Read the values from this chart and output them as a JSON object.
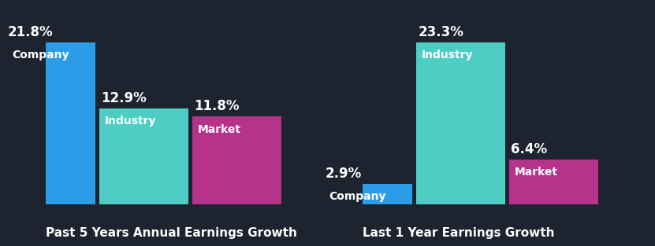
{
  "background_color": "#1e2330",
  "group1": {
    "title": "Past 5 Years Annual Earnings Growth",
    "bars": [
      {
        "label": "Company",
        "value": 21.8,
        "color": "#2b9de8"
      },
      {
        "label": "Industry",
        "value": 12.9,
        "color": "#4ecdc4"
      },
      {
        "label": "Market",
        "value": 11.8,
        "color": "#b5338a"
      }
    ]
  },
  "group2": {
    "title": "Last 1 Year Earnings Growth",
    "bars": [
      {
        "label": "Company",
        "value": 2.9,
        "color": "#2b9de8"
      },
      {
        "label": "Industry",
        "value": 23.3,
        "color": "#4ecdc4"
      },
      {
        "label": "Market",
        "value": 6.4,
        "color": "#b5338a"
      }
    ]
  },
  "text_color": "#ffffff",
  "title_color": "#ffffff",
  "value_fontsize": 12,
  "label_fontsize": 10,
  "title_fontsize": 11,
  "bar_width": 0.93,
  "bar_gap": 0.04
}
